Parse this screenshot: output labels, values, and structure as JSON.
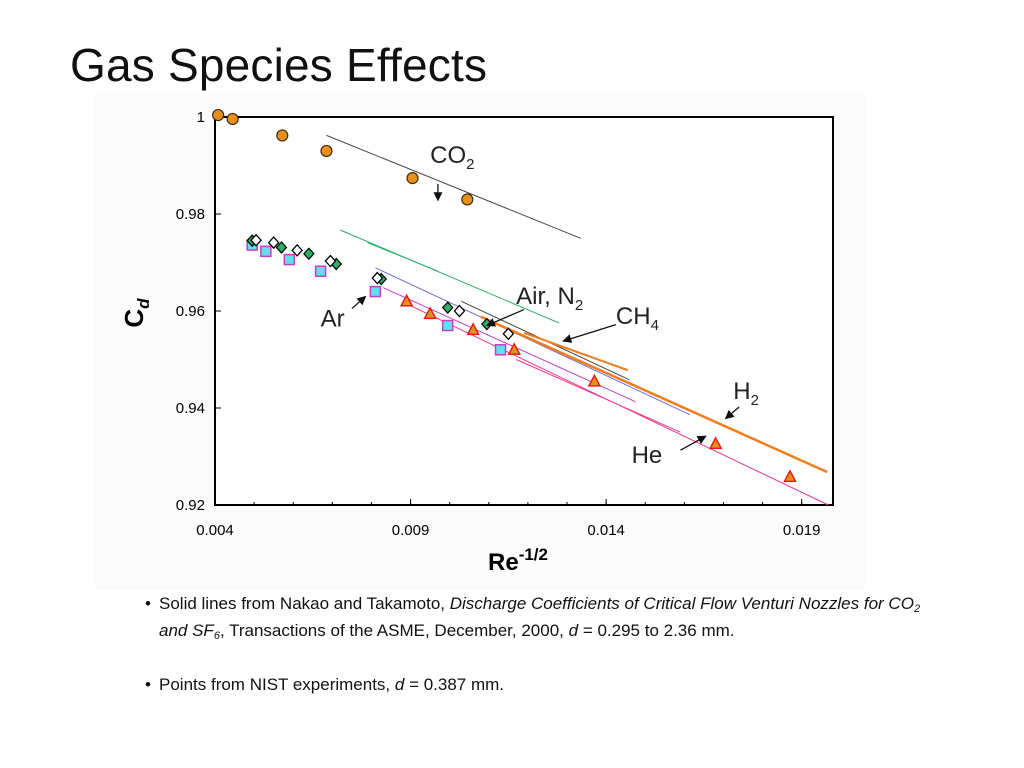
{
  "slide": {
    "title": "Gas Species Effects"
  },
  "notes": {
    "bullet_char": "•",
    "bullet1": {
      "pre": "Solid lines from Nakao and Takamoto, ",
      "cite_a": "Discharge Coefficients of Critical Flow Venturi Nozzles for CO",
      "sub_a": "2",
      "cite_b": " and SF",
      "sub_b": "6",
      "mid": ", Transactions of the ASME, December, 2000, ",
      "var": "d",
      "post": " = 0.295 to 2.36 mm."
    },
    "bullet2": {
      "pre": "Points from NIST experiments, ",
      "var": "d",
      "post": " = 0.387 mm."
    }
  },
  "chart_data": {
    "type": "scatter",
    "xlabel": "Re",
    "xlabel_sup": "-1/2",
    "ylabel": "C",
    "ylabel_sub": "d",
    "xlim": [
      0.004,
      0.0198
    ],
    "ylim": [
      0.92,
      1.0
    ],
    "x_ticks": [
      "0.004",
      "0.009",
      "0.014",
      "0.019"
    ],
    "y_ticks": [
      "0.92",
      "0.94",
      "0.96",
      "0.98",
      "1"
    ],
    "colors": {
      "co2": "#e8901c",
      "he": "#e0201a",
      "air_green": "#2fae68",
      "ar_fill": "#5fe0f0",
      "ar_edge": "#c040c0",
      "h2_line": "#f07c1a",
      "ch4_line": "#3aa070",
      "he_line": "#ea3a8a",
      "ar_line": "#c040c0",
      "co2_line": "#444444",
      "air_line": "#7070d0"
    },
    "series": [
      {
        "name": "CO2 points",
        "marker": "circle",
        "points": [
          [
            0.00408,
            1.0004
          ],
          [
            0.00445,
            0.9996
          ],
          [
            0.00572,
            0.9962
          ],
          [
            0.00685,
            0.993
          ],
          [
            0.00905,
            0.9874
          ],
          [
            0.01045,
            0.983
          ]
        ]
      },
      {
        "name": "Air points",
        "marker": "diamond-white",
        "points": [
          [
            0.00505,
            0.9746
          ],
          [
            0.0055,
            0.9741
          ],
          [
            0.0061,
            0.9725
          ],
          [
            0.00695,
            0.9703
          ],
          [
            0.00815,
            0.9668
          ],
          [
            0.01025,
            0.96
          ],
          [
            0.0115,
            0.9553
          ]
        ]
      },
      {
        "name": "N2 points",
        "marker": "diamond-green",
        "points": [
          [
            0.00495,
            0.9745
          ],
          [
            0.0057,
            0.9731
          ],
          [
            0.0064,
            0.9718
          ],
          [
            0.0071,
            0.9697
          ],
          [
            0.00825,
            0.9666
          ],
          [
            0.00995,
            0.9607
          ],
          [
            0.01095,
            0.9573
          ]
        ]
      },
      {
        "name": "Ar points",
        "marker": "square",
        "points": [
          [
            0.00495,
            0.9736
          ],
          [
            0.0053,
            0.9723
          ],
          [
            0.0059,
            0.9706
          ],
          [
            0.0067,
            0.9682
          ],
          [
            0.0081,
            0.964
          ],
          [
            0.00995,
            0.957
          ],
          [
            0.0113,
            0.952
          ]
        ]
      },
      {
        "name": "He points",
        "marker": "triangle",
        "points": [
          [
            0.0089,
            0.962
          ],
          [
            0.0095,
            0.9594
          ],
          [
            0.0106,
            0.9561
          ],
          [
            0.01165,
            0.952
          ],
          [
            0.0137,
            0.9455
          ],
          [
            0.0168,
            0.9326
          ],
          [
            0.0187,
            0.9258
          ]
        ]
      }
    ],
    "lines": [
      {
        "name": "CO2",
        "color_key": "co2_line",
        "width": 1,
        "points": [
          [
            0.00685,
            0.9962
          ],
          [
            0.01335,
            0.975
          ]
        ]
      },
      {
        "name": "CH4",
        "color_key": "air_green",
        "width": 1,
        "points": [
          [
            0.0072,
            0.9767
          ],
          [
            0.0128,
            0.9575
          ]
        ]
      },
      {
        "name": "CH4b",
        "color_key": "air_green",
        "width": 1,
        "points": [
          [
            0.0079,
            0.9741
          ],
          [
            0.0097,
            0.9682
          ]
        ]
      },
      {
        "name": "Air",
        "color_key": "air_line",
        "width": 1,
        "points": [
          [
            0.0081,
            0.9689
          ],
          [
            0.01615,
            0.9386
          ]
        ]
      },
      {
        "name": "Air2",
        "color_key": "co2_line",
        "width": 1,
        "points": [
          [
            0.0103,
            0.962
          ],
          [
            0.0146,
            0.9458
          ]
        ]
      },
      {
        "name": "Ar",
        "color_key": "ar_line",
        "width": 1,
        "points": [
          [
            0.0083,
            0.9648
          ],
          [
            0.01475,
            0.9413
          ]
        ]
      },
      {
        "name": "He",
        "color_key": "he_line",
        "width": 1,
        "points": [
          [
            0.009,
            0.9611
          ],
          [
            0.01968,
            0.92
          ]
        ]
      },
      {
        "name": "He2",
        "color_key": "he_line",
        "width": 1,
        "points": [
          [
            0.0117,
            0.95
          ],
          [
            0.0159,
            0.935
          ]
        ]
      },
      {
        "name": "H2",
        "color_key": "h2_line",
        "width": 2.5,
        "points": [
          [
            0.0108,
            0.9588
          ],
          [
            0.01965,
            0.9268
          ]
        ]
      },
      {
        "name": "H2b",
        "color_key": "h2_line",
        "width": 2,
        "points": [
          [
            0.0119,
            0.9555
          ],
          [
            0.01455,
            0.9478
          ]
        ]
      }
    ],
    "annotations": [
      {
        "label": "CO",
        "sub": "2",
        "at": [
          0.0095,
          0.9905
        ],
        "arrow_from": [
          0.0097,
          0.9862
        ],
        "arrow_to": [
          0.0097,
          0.9828
        ]
      },
      {
        "label": "Air, N",
        "sub": "2",
        "at": [
          0.0117,
          0.9614
        ],
        "arrow_from": [
          0.0119,
          0.9603
        ],
        "arrow_to": [
          0.01095,
          0.957
        ]
      },
      {
        "label": "CH",
        "sub": "4",
        "at": [
          0.01425,
          0.9573
        ],
        "arrow_from": [
          0.01425,
          0.9572
        ],
        "arrow_to": [
          0.0129,
          0.9538
        ]
      },
      {
        "label": "Ar",
        "sub": "",
        "at": [
          0.0067,
          0.9568
        ],
        "arrow_from": [
          0.0075,
          0.9605
        ],
        "arrow_to": [
          0.00785,
          0.963
        ]
      },
      {
        "label": "H",
        "sub": "2",
        "at": [
          0.01725,
          0.9419
        ],
        "arrow_from": [
          0.0174,
          0.9402
        ],
        "arrow_to": [
          0.01705,
          0.9378
        ]
      },
      {
        "label": "He",
        "sub": "",
        "at": [
          0.01465,
          0.9287
        ],
        "arrow_from": [
          0.0159,
          0.9313
        ],
        "arrow_to": [
          0.01655,
          0.9342
        ]
      }
    ]
  }
}
